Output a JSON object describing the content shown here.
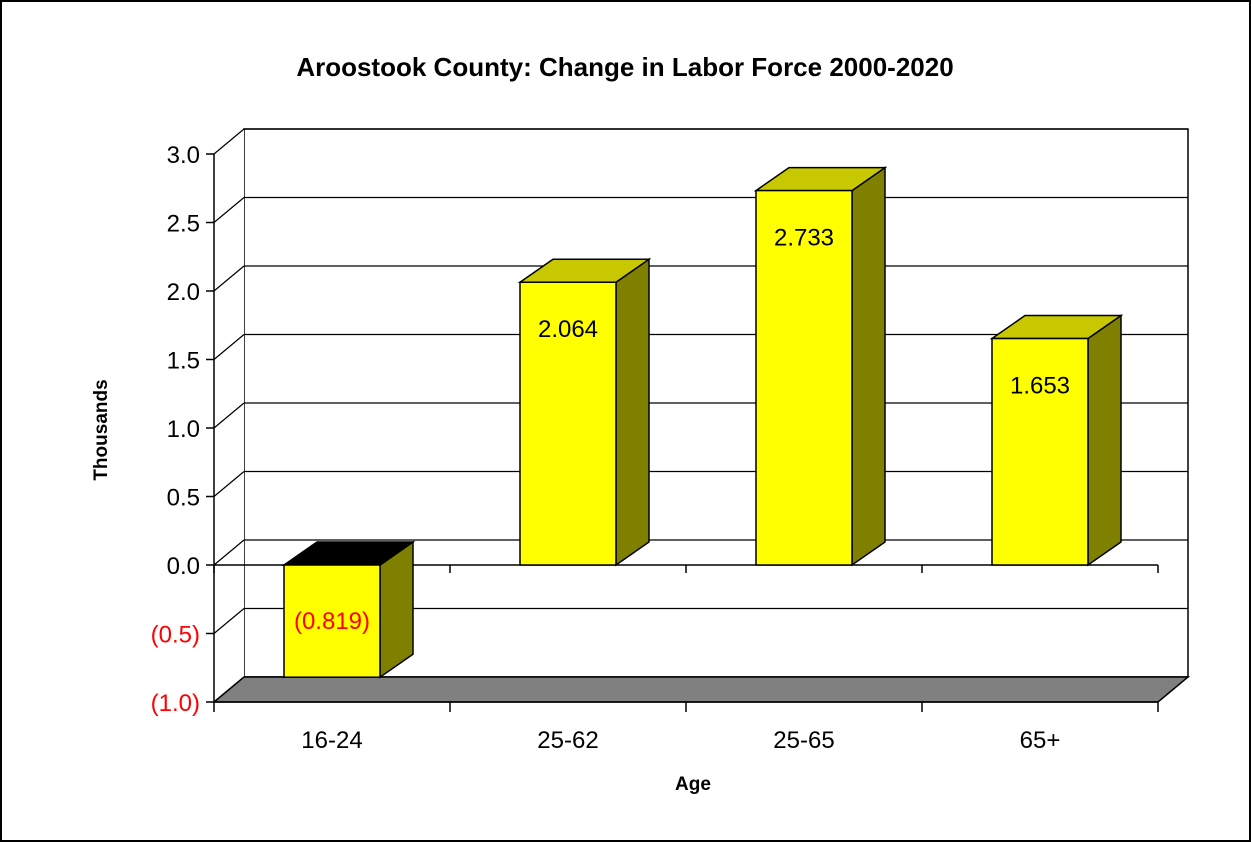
{
  "chart_data": {
    "type": "bar",
    "title": "Aroostook County:  Change in Labor Force 2000-2020",
    "xlabel": "Age",
    "ylabel": "Thousands",
    "categories": [
      "16-24",
      "25-62",
      "25-65",
      "65+"
    ],
    "values": [
      -0.819,
      2.064,
      2.733,
      1.653
    ],
    "data_labels": [
      "(0.819)",
      "2.064",
      "2.733",
      "1.653"
    ],
    "ylim": [
      -1.0,
      3.0
    ],
    "yticks": [
      3.0,
      2.5,
      2.0,
      1.5,
      1.0,
      0.5,
      0.0,
      -0.5,
      -1.0
    ],
    "ytick_labels": [
      "3.0",
      "2.5",
      "2.0",
      "1.5",
      "1.0",
      "0.5",
      "0.0",
      "(0.5)",
      "(1.0)"
    ],
    "grid": true,
    "legend": "none",
    "style": "3d-column",
    "colors": {
      "bar_front": "#FFFF00",
      "bar_side": "#808000",
      "bar_top": "#C8C800",
      "bar_top_negative": "#000000",
      "floor": "#808080",
      "negative_text": "#FF0000",
      "text": "#000000"
    }
  }
}
